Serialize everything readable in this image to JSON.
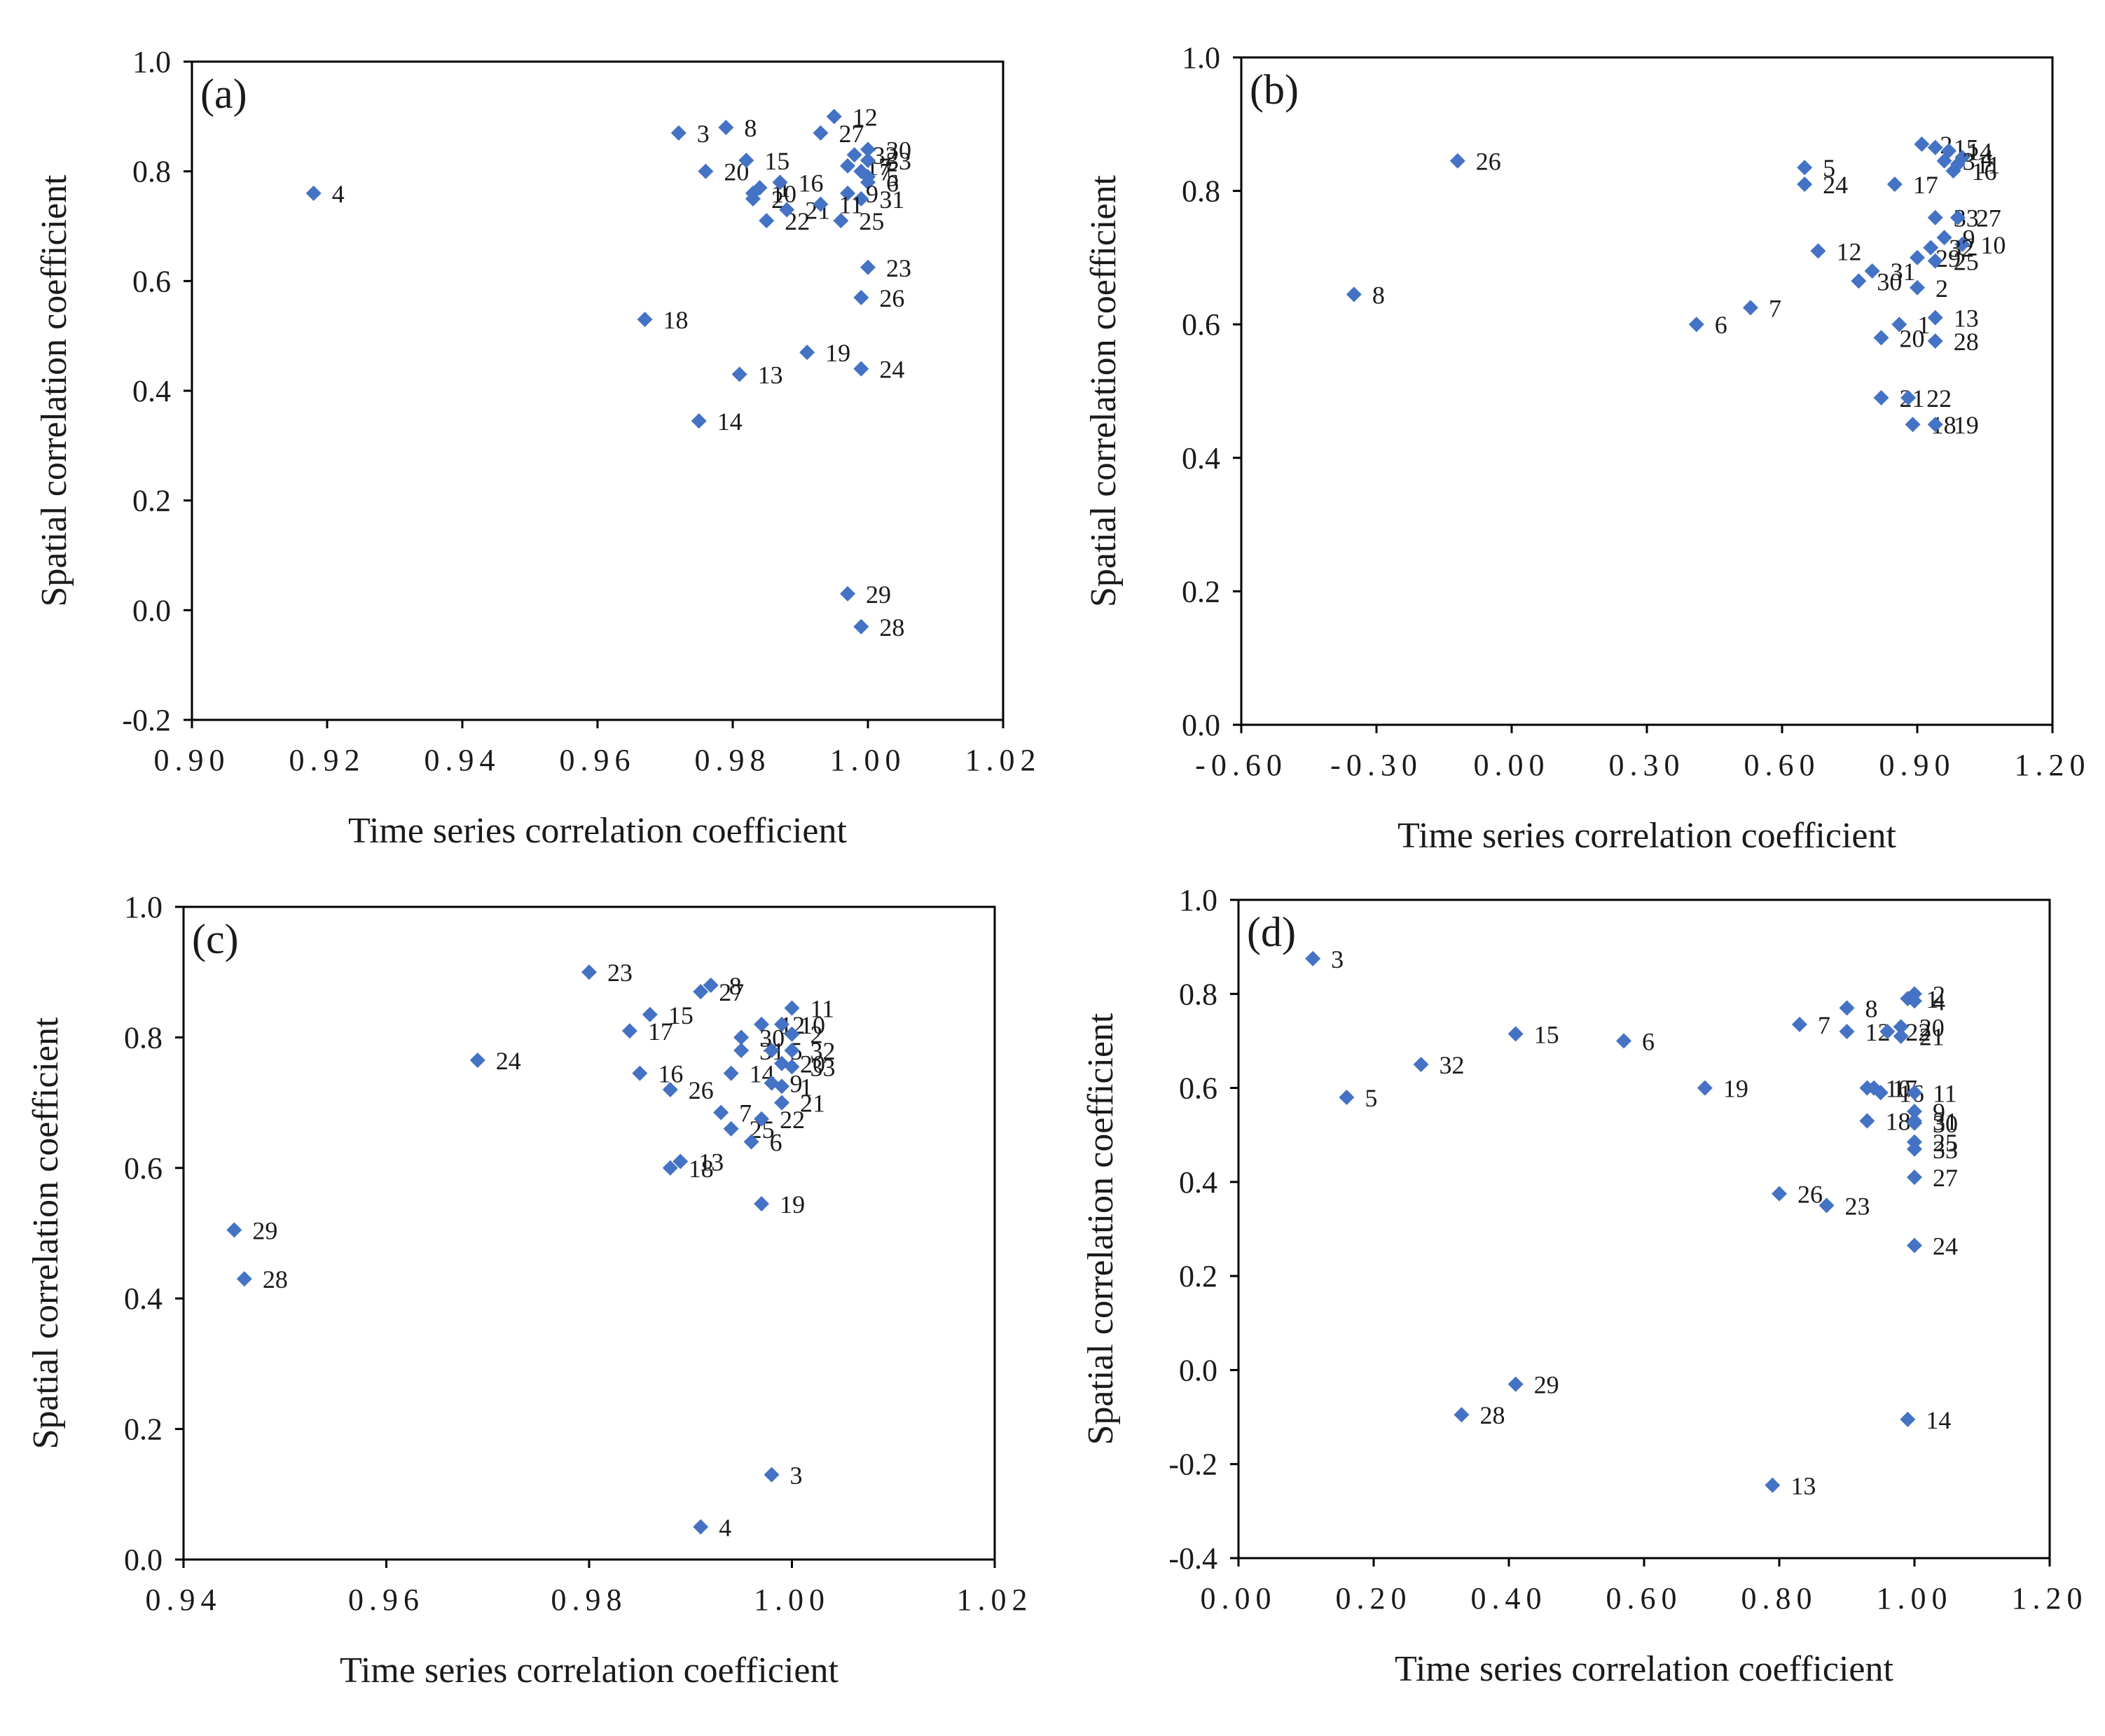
{
  "marker_color": "#4472C4",
  "chart_data": [
    {
      "type": "scatter",
      "panel_label": "(a)",
      "xlabel": "Time series correlation coefficient",
      "ylabel": "Spatial  correlation coefficient",
      "xlim": [
        0.9,
        1.02
      ],
      "ylim": [
        -0.2,
        1.0
      ],
      "x_ticks": [
        "0.90",
        "0.92",
        "0.94",
        "0.96",
        "0.98",
        "1.00",
        "1.02"
      ],
      "y_ticks": [
        "-0.2",
        "0.0",
        "0.2",
        "0.4",
        "0.6",
        "0.8",
        "1.0"
      ],
      "points": [
        {
          "label": "4",
          "x": 0.918,
          "y": 0.76
        },
        {
          "label": "3",
          "x": 0.972,
          "y": 0.87
        },
        {
          "label": "8",
          "x": 0.979,
          "y": 0.88
        },
        {
          "label": "20",
          "x": 0.976,
          "y": 0.8
        },
        {
          "label": "15",
          "x": 0.982,
          "y": 0.82
        },
        {
          "label": "10",
          "x": 0.983,
          "y": 0.76
        },
        {
          "label": "1",
          "x": 0.984,
          "y": 0.77
        },
        {
          "label": "16",
          "x": 0.987,
          "y": 0.78
        },
        {
          "label": "2",
          "x": 0.983,
          "y": 0.75
        },
        {
          "label": "22",
          "x": 0.985,
          "y": 0.71
        },
        {
          "label": "21",
          "x": 0.988,
          "y": 0.73
        },
        {
          "label": "27",
          "x": 0.993,
          "y": 0.87
        },
        {
          "label": "12",
          "x": 0.995,
          "y": 0.9
        },
        {
          "label": "17",
          "x": 0.997,
          "y": 0.81
        },
        {
          "label": "32",
          "x": 0.998,
          "y": 0.83
        },
        {
          "label": "30",
          "x": 1.0,
          "y": 0.84
        },
        {
          "label": "33",
          "x": 1.0,
          "y": 0.82
        },
        {
          "label": "7",
          "x": 0.999,
          "y": 0.8
        },
        {
          "label": "5",
          "x": 1.0,
          "y": 0.79
        },
        {
          "label": "6",
          "x": 1.0,
          "y": 0.78
        },
        {
          "label": "9",
          "x": 0.997,
          "y": 0.76
        },
        {
          "label": "31",
          "x": 0.999,
          "y": 0.75
        },
        {
          "label": "11",
          "x": 0.993,
          "y": 0.74
        },
        {
          "label": "25",
          "x": 0.996,
          "y": 0.71
        },
        {
          "label": "23",
          "x": 1.0,
          "y": 0.625
        },
        {
          "label": "26",
          "x": 0.999,
          "y": 0.57
        },
        {
          "label": "18",
          "x": 0.967,
          "y": 0.53
        },
        {
          "label": "19",
          "x": 0.991,
          "y": 0.47
        },
        {
          "label": "24",
          "x": 0.999,
          "y": 0.44
        },
        {
          "label": "13",
          "x": 0.981,
          "y": 0.43
        },
        {
          "label": "14",
          "x": 0.975,
          "y": 0.345
        },
        {
          "label": "29",
          "x": 0.997,
          "y": 0.03
        },
        {
          "label": "28",
          "x": 0.999,
          "y": -0.03
        }
      ]
    },
    {
      "type": "scatter",
      "panel_label": "(b)",
      "xlabel": "Time series correlation coefficient",
      "ylabel": "Spatial  correlation coefficient",
      "xlim": [
        -0.6,
        1.2
      ],
      "ylim": [
        0.0,
        1.0
      ],
      "x_ticks": [
        "-0.60",
        "-0.30",
        "0.00",
        "0.30",
        "0.60",
        "0.90",
        "1.20"
      ],
      "y_ticks": [
        "0.0",
        "0.2",
        "0.4",
        "0.6",
        "0.8",
        "1.0"
      ],
      "points": [
        {
          "label": "26",
          "x": -0.12,
          "y": 0.845
        },
        {
          "label": "8",
          "x": -0.35,
          "y": 0.645
        },
        {
          "label": "5",
          "x": 0.65,
          "y": 0.835
        },
        {
          "label": "24",
          "x": 0.65,
          "y": 0.81
        },
        {
          "label": "17",
          "x": 0.85,
          "y": 0.81
        },
        {
          "label": "2",
          "x": 0.91,
          "y": 0.87
        },
        {
          "label": "15",
          "x": 0.94,
          "y": 0.865
        },
        {
          "label": "14",
          "x": 0.97,
          "y": 0.86
        },
        {
          "label": "4",
          "x": 1.0,
          "y": 0.85
        },
        {
          "label": "3",
          "x": 0.96,
          "y": 0.845
        },
        {
          "label": "11",
          "x": 0.99,
          "y": 0.84
        },
        {
          "label": "16",
          "x": 0.98,
          "y": 0.83
        },
        {
          "label": "33",
          "x": 0.94,
          "y": 0.76
        },
        {
          "label": "27",
          "x": 0.99,
          "y": 0.76
        },
        {
          "label": "9",
          "x": 0.96,
          "y": 0.73
        },
        {
          "label": "10",
          "x": 1.0,
          "y": 0.72
        },
        {
          "label": "32",
          "x": 0.93,
          "y": 0.715
        },
        {
          "label": "29",
          "x": 0.9,
          "y": 0.7
        },
        {
          "label": "25",
          "x": 0.94,
          "y": 0.695
        },
        {
          "label": "12",
          "x": 0.68,
          "y": 0.71
        },
        {
          "label": "31",
          "x": 0.8,
          "y": 0.68
        },
        {
          "label": "30",
          "x": 0.77,
          "y": 0.665
        },
        {
          "label": "2",
          "x": 0.9,
          "y": 0.655
        },
        {
          "label": "7",
          "x": 0.53,
          "y": 0.625
        },
        {
          "label": "1",
          "x": 0.86,
          "y": 0.6
        },
        {
          "label": "13",
          "x": 0.94,
          "y": 0.61
        },
        {
          "label": "6",
          "x": 0.41,
          "y": 0.6
        },
        {
          "label": "20",
          "x": 0.82,
          "y": 0.58
        },
        {
          "label": "28",
          "x": 0.94,
          "y": 0.575
        },
        {
          "label": "21",
          "x": 0.82,
          "y": 0.49
        },
        {
          "label": "22",
          "x": 0.88,
          "y": 0.49
        },
        {
          "label": "18",
          "x": 0.89,
          "y": 0.45
        },
        {
          "label": "19",
          "x": 0.94,
          "y": 0.45
        }
      ]
    },
    {
      "type": "scatter",
      "panel_label": "(c)",
      "xlabel": "Time series correlation coefficient",
      "ylabel": "Spatial  correlation coefficient",
      "xlim": [
        0.94,
        1.02
      ],
      "ylim": [
        0.0,
        1.0
      ],
      "x_ticks": [
        "0.94",
        "0.96",
        "0.98",
        "1.00",
        "1.02"
      ],
      "y_ticks": [
        "0.0",
        "0.2",
        "0.4",
        "0.6",
        "0.8",
        "1.0"
      ],
      "points": [
        {
          "label": "23",
          "x": 0.98,
          "y": 0.9
        },
        {
          "label": "27",
          "x": 0.991,
          "y": 0.87
        },
        {
          "label": "8",
          "x": 0.992,
          "y": 0.88
        },
        {
          "label": "15",
          "x": 0.986,
          "y": 0.835
        },
        {
          "label": "17",
          "x": 0.984,
          "y": 0.81
        },
        {
          "label": "11",
          "x": 1.0,
          "y": 0.845
        },
        {
          "label": "12",
          "x": 0.997,
          "y": 0.82
        },
        {
          "label": "10",
          "x": 0.999,
          "y": 0.82
        },
        {
          "label": "30",
          "x": 0.995,
          "y": 0.8
        },
        {
          "label": "2",
          "x": 1.0,
          "y": 0.805
        },
        {
          "label": "31",
          "x": 0.995,
          "y": 0.78
        },
        {
          "label": "5",
          "x": 0.998,
          "y": 0.78
        },
        {
          "label": "32",
          "x": 1.0,
          "y": 0.78
        },
        {
          "label": "20",
          "x": 0.999,
          "y": 0.76
        },
        {
          "label": "33",
          "x": 1.0,
          "y": 0.755
        },
        {
          "label": "24",
          "x": 0.969,
          "y": 0.765
        },
        {
          "label": "16",
          "x": 0.985,
          "y": 0.745
        },
        {
          "label": "26",
          "x": 0.988,
          "y": 0.72
        },
        {
          "label": "14",
          "x": 0.994,
          "y": 0.745
        },
        {
          "label": "9",
          "x": 0.998,
          "y": 0.73
        },
        {
          "label": "1",
          "x": 0.999,
          "y": 0.725
        },
        {
          "label": "21",
          "x": 0.999,
          "y": 0.7
        },
        {
          "label": "7",
          "x": 0.993,
          "y": 0.685
        },
        {
          "label": "25",
          "x": 0.994,
          "y": 0.66
        },
        {
          "label": "22",
          "x": 0.997,
          "y": 0.675
        },
        {
          "label": "6",
          "x": 0.996,
          "y": 0.64
        },
        {
          "label": "13",
          "x": 0.989,
          "y": 0.61
        },
        {
          "label": "18",
          "x": 0.988,
          "y": 0.6
        },
        {
          "label": "19",
          "x": 0.997,
          "y": 0.545
        },
        {
          "label": "29",
          "x": 0.945,
          "y": 0.505
        },
        {
          "label": "28",
          "x": 0.946,
          "y": 0.43
        },
        {
          "label": "3",
          "x": 0.998,
          "y": 0.13
        },
        {
          "label": "4",
          "x": 0.991,
          "y": 0.05
        }
      ]
    },
    {
      "type": "scatter",
      "panel_label": "(d)",
      "xlabel": "Time series correlation coefficient",
      "ylabel": "Spatial  correlation coefficient",
      "xlim": [
        0.0,
        1.2
      ],
      "ylim": [
        -0.4,
        1.0
      ],
      "x_ticks": [
        "0.00",
        "0.20",
        "0.40",
        "0.60",
        "0.80",
        "1.00",
        "1.20"
      ],
      "y_ticks": [
        "-0.4",
        "-0.2",
        "0.0",
        "0.2",
        "0.4",
        "0.6",
        "0.8",
        "1.0"
      ],
      "points": [
        {
          "label": "3",
          "x": 0.11,
          "y": 0.875
        },
        {
          "label": "5",
          "x": 0.16,
          "y": 0.58
        },
        {
          "label": "32",
          "x": 0.27,
          "y": 0.65
        },
        {
          "label": "15",
          "x": 0.41,
          "y": 0.715
        },
        {
          "label": "6",
          "x": 0.57,
          "y": 0.7
        },
        {
          "label": "19",
          "x": 0.69,
          "y": 0.6
        },
        {
          "label": "7",
          "x": 0.83,
          "y": 0.735
        },
        {
          "label": "8",
          "x": 0.9,
          "y": 0.77
        },
        {
          "label": "2",
          "x": 1.0,
          "y": 0.8
        },
        {
          "label": "1",
          "x": 0.99,
          "y": 0.79
        },
        {
          "label": "4",
          "x": 1.0,
          "y": 0.785
        },
        {
          "label": "12",
          "x": 0.9,
          "y": 0.72
        },
        {
          "label": "22",
          "x": 0.96,
          "y": 0.72
        },
        {
          "label": "20",
          "x": 0.98,
          "y": 0.73
        },
        {
          "label": "21",
          "x": 0.98,
          "y": 0.71
        },
        {
          "label": "17",
          "x": 0.94,
          "y": 0.6
        },
        {
          "label": "16",
          "x": 0.95,
          "y": 0.59
        },
        {
          "label": "10",
          "x": 0.93,
          "y": 0.6
        },
        {
          "label": "11",
          "x": 1.0,
          "y": 0.59
        },
        {
          "label": "9",
          "x": 1.0,
          "y": 0.55
        },
        {
          "label": "31",
          "x": 1.0,
          "y": 0.53
        },
        {
          "label": "18",
          "x": 0.93,
          "y": 0.53
        },
        {
          "label": "30",
          "x": 1.0,
          "y": 0.525
        },
        {
          "label": "25",
          "x": 1.0,
          "y": 0.485
        },
        {
          "label": "33",
          "x": 1.0,
          "y": 0.47
        },
        {
          "label": "27",
          "x": 1.0,
          "y": 0.41
        },
        {
          "label": "26",
          "x": 0.8,
          "y": 0.375
        },
        {
          "label": "23",
          "x": 0.87,
          "y": 0.35
        },
        {
          "label": "24",
          "x": 1.0,
          "y": 0.265
        },
        {
          "label": "29",
          "x": 0.41,
          "y": -0.03
        },
        {
          "label": "28",
          "x": 0.33,
          "y": -0.095
        },
        {
          "label": "14",
          "x": 0.99,
          "y": -0.105
        },
        {
          "label": "13",
          "x": 0.79,
          "y": -0.245
        }
      ]
    }
  ]
}
